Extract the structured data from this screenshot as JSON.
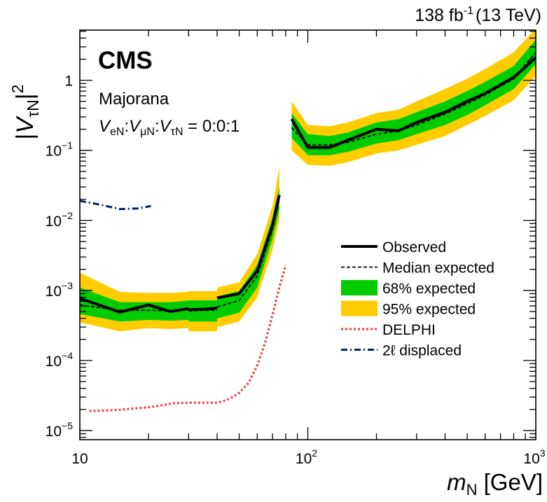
{
  "chart_data": {
    "type": "line",
    "x_scale": "log",
    "y_scale": "log",
    "xlim": [
      10,
      1000
    ],
    "ylim": [
      7.4e-06,
      5.2
    ],
    "lumi_label": "138 fb",
    "lumi_sup": "-1",
    "energy_label": "(13 TeV)",
    "experiment": "CMS",
    "model_label": "Majorana",
    "coupling_label": {
      "v1": "V",
      "s1": "eN",
      "sep1": ":",
      "v2": "V",
      "s2": "μN",
      "sep2": ":",
      "v3": "V",
      "s3": "τN",
      "eq": " = 0:0:1"
    },
    "xlabel": {
      "main": "m",
      "sub": "N",
      "unit": " [GeV]"
    },
    "ylabel": {
      "pre": "|",
      "main": "V",
      "sub": "τN",
      "post": "|",
      "sup": "2"
    },
    "x_ticks": [
      {
        "value": 10,
        "label": "10",
        "sup": ""
      },
      {
        "value": 100,
        "label": "10",
        "sup": "2"
      },
      {
        "value": 1000,
        "label": "10",
        "sup": "3"
      }
    ],
    "y_ticks": [
      {
        "value": 1e-05,
        "label": "10",
        "sup": "−5"
      },
      {
        "value": 0.0001,
        "label": "10",
        "sup": "−4"
      },
      {
        "value": 0.001,
        "label": "10",
        "sup": "−3"
      },
      {
        "value": 0.01,
        "label": "10",
        "sup": "−2"
      },
      {
        "value": 0.1,
        "label": "10",
        "sup": "−1"
      },
      {
        "value": 1,
        "label": "1",
        "sup": ""
      }
    ],
    "series": [
      {
        "name": "Observed",
        "style": "solid-thick",
        "color": "#000000",
        "segments": [
          {
            "x": [
              10,
              15,
              20,
              25,
              30
            ],
            "y": [
              0.00077,
              0.00049,
              0.00062,
              0.0005,
              0.00055
            ]
          },
          {
            "x": [
              30,
              35,
              40
            ],
            "y": [
              0.00053,
              0.00054,
              0.00056
            ]
          },
          {
            "x": [
              40,
              50,
              60,
              70,
              75
            ],
            "y": [
              0.00078,
              0.0009,
              0.0019,
              0.0085,
              0.023
            ]
          },
          {
            "x": [
              85,
              100,
              125,
              150,
              200,
              250,
              300,
              400,
              500,
              600,
              800,
              1000
            ],
            "y": [
              0.28,
              0.11,
              0.11,
              0.14,
              0.2,
              0.19,
              0.25,
              0.35,
              0.5,
              0.65,
              1.1,
              2.1
            ]
          }
        ]
      },
      {
        "name": "Median expected",
        "style": "dashed",
        "color": "#000000",
        "segments": [
          {
            "x": [
              10,
              15,
              20,
              25,
              30
            ],
            "y": [
              0.00062,
              0.00052,
              0.00052,
              0.00051,
              0.00053
            ]
          },
          {
            "x": [
              30,
              35,
              40
            ],
            "y": [
              0.00051,
              0.00052,
              0.00052
            ]
          },
          {
            "x": [
              40,
              50,
              60,
              70,
              75
            ],
            "y": [
              0.00058,
              0.00072,
              0.0016,
              0.0075,
              0.02
            ]
          },
          {
            "x": [
              85,
              100,
              125,
              150,
              200,
              250,
              300,
              400,
              500,
              600,
              800,
              1000
            ],
            "y": [
              0.21,
              0.12,
              0.12,
              0.13,
              0.17,
              0.19,
              0.23,
              0.33,
              0.46,
              0.62,
              1.05,
              2.5
            ]
          }
        ]
      },
      {
        "name": "68% expected",
        "style": "band",
        "color": "#00cc00",
        "segments": [
          {
            "x": [
              10,
              15,
              20,
              25,
              30
            ],
            "upper": [
              0.0011,
              0.00068,
              0.00068,
              0.00068,
              0.00072
            ],
            "lower": [
              0.00046,
              0.00036,
              0.00038,
              0.00037,
              0.00038
            ]
          },
          {
            "x": [
              30,
              35,
              40
            ],
            "upper": [
              0.00072,
              0.00072,
              0.00072
            ],
            "lower": [
              0.00036,
              0.00036,
              0.00036
            ]
          },
          {
            "x": [
              40,
              50,
              60,
              70,
              75
            ],
            "upper": [
              0.00082,
              0.00098,
              0.0023,
              0.011,
              0.03
            ],
            "lower": [
              0.0004,
              0.00048,
              0.0011,
              0.0054,
              0.014
            ]
          },
          {
            "x": [
              85,
              100,
              125,
              150,
              200,
              250,
              300,
              400,
              500,
              600,
              800,
              1000
            ],
            "upper": [
              0.34,
              0.17,
              0.16,
              0.18,
              0.25,
              0.28,
              0.35,
              0.5,
              0.7,
              0.95,
              1.6,
              3.8
            ],
            "lower": [
              0.15,
              0.085,
              0.085,
              0.095,
              0.125,
              0.14,
              0.17,
              0.23,
              0.32,
              0.44,
              0.75,
              1.7
            ]
          }
        ]
      },
      {
        "name": "95% expected",
        "style": "band",
        "color": "#ffcc00",
        "segments": [
          {
            "x": [
              10,
              15,
              20,
              25,
              30
            ],
            "upper": [
              0.0018,
              0.00095,
              0.00092,
              0.00092,
              0.00096
            ],
            "lower": [
              0.00035,
              0.00026,
              0.00029,
              0.00028,
              0.00029
            ]
          },
          {
            "x": [
              30,
              35,
              40
            ],
            "upper": [
              0.00098,
              0.00098,
              0.00098
            ],
            "lower": [
              0.00026,
              0.00026,
              0.00026
            ]
          },
          {
            "x": [
              40,
              50,
              60,
              70,
              75
            ],
            "upper": [
              0.0011,
              0.0013,
              0.0033,
              0.016,
              0.058
            ],
            "lower": [
              0.0003,
              0.00036,
              0.0008,
              0.0038,
              0.0099
            ]
          },
          {
            "x": [
              85,
              100,
              125,
              150,
              200,
              250,
              300,
              400,
              500,
              600,
              800,
              1000
            ],
            "upper": [
              0.5,
              0.23,
              0.22,
              0.25,
              0.34,
              0.38,
              0.5,
              0.75,
              1.05,
              1.45,
              2.5,
              5.5
            ],
            "lower": [
              0.1,
              0.062,
              0.06,
              0.068,
              0.09,
              0.1,
              0.12,
              0.16,
              0.23,
              0.31,
              0.52,
              1.15
            ]
          }
        ]
      },
      {
        "name": "DELPHI",
        "style": "dotted",
        "color": "#ee4444",
        "segments": [
          {
            "x": [
              11,
              13,
              15,
              17,
              20,
              23,
              26,
              30,
              35,
              40,
              43,
              46,
              50,
              55,
              60,
              65,
              70,
              75,
              80
            ],
            "y": [
              1.9e-05,
              1.93e-05,
              1.98e-05,
              2.05e-05,
              2.15e-05,
              2.3e-05,
              2.45e-05,
              2.5e-05,
              2.5e-05,
              2.5e-05,
              2.65e-05,
              2.9e-05,
              3.45e-05,
              4.8e-05,
              8.5e-05,
              0.00018,
              0.00045,
              0.0011,
              0.0023
            ]
          }
        ]
      },
      {
        "name": "2ℓ displaced",
        "style": "dashdot",
        "color": "#002266",
        "segments": [
          {
            "x": [
              10,
              12,
              15,
              18,
              20.5
            ],
            "y": [
              0.019,
              0.017,
              0.0145,
              0.0148,
              0.016
            ]
          }
        ]
      }
    ],
    "legend": {
      "position": "right",
      "entries": [
        {
          "label": "Observed",
          "style": "solid-thick",
          "color": "#000000"
        },
        {
          "label": "Median expected",
          "style": "dashed",
          "color": "#000000"
        },
        {
          "label": "68% expected",
          "style": "band",
          "color": "#00cc00"
        },
        {
          "label": "95% expected",
          "style": "band",
          "color": "#ffcc00"
        },
        {
          "label": "DELPHI",
          "style": "dotted",
          "color": "#ee4444"
        },
        {
          "label": "2ℓ displaced",
          "style": "dashdot",
          "color": "#002266"
        }
      ]
    }
  }
}
